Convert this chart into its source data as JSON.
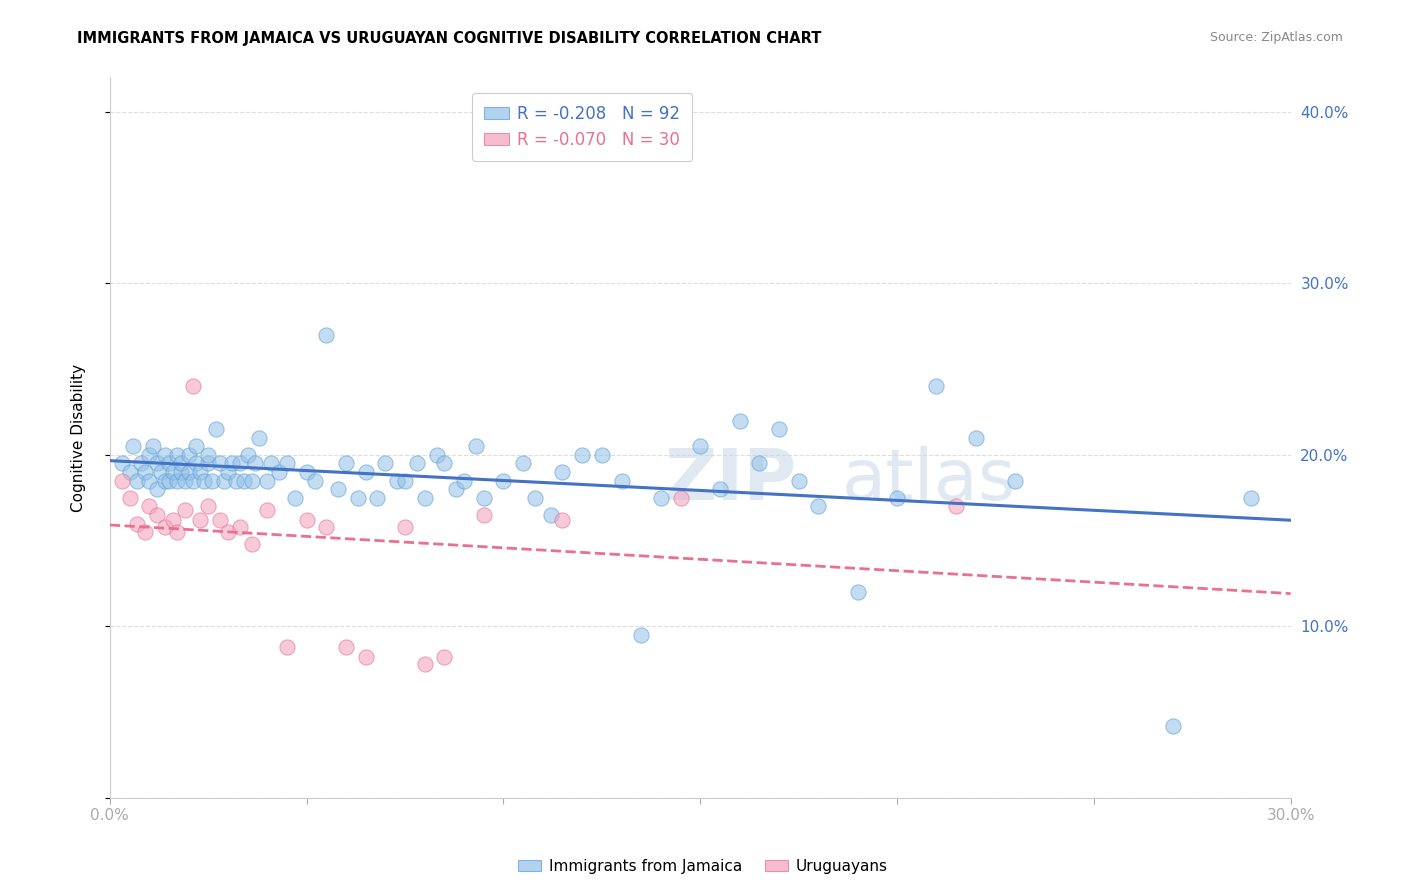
{
  "title": "IMMIGRANTS FROM JAMAICA VS URUGUAYAN COGNITIVE DISABILITY CORRELATION CHART",
  "source": "Source: ZipAtlas.com",
  "ylabel": "Cognitive Disability",
  "xlim": [
    0.0,
    0.3
  ],
  "ylim": [
    0.0,
    0.42
  ],
  "legend1_label": "R = -0.208   N = 92",
  "legend2_label": "R = -0.070   N = 30",
  "watermark_text": "ZIP",
  "watermark_text2": "atlas",
  "blue_color": "#92C0E8",
  "pink_color": "#F4A0B8",
  "line_blue": "#4472C4",
  "line_pink": "#E87090",
  "grid_color": "#DDDDDD",
  "title_fontsize": 10.5,
  "tick_label_color": "#4472C4",
  "blue_scatter_x": [
    0.003,
    0.005,
    0.006,
    0.007,
    0.008,
    0.009,
    0.01,
    0.01,
    0.011,
    0.012,
    0.012,
    0.013,
    0.014,
    0.014,
    0.015,
    0.015,
    0.016,
    0.017,
    0.017,
    0.018,
    0.018,
    0.019,
    0.02,
    0.02,
    0.021,
    0.022,
    0.022,
    0.023,
    0.024,
    0.025,
    0.025,
    0.026,
    0.027,
    0.028,
    0.029,
    0.03,
    0.031,
    0.032,
    0.033,
    0.034,
    0.035,
    0.036,
    0.037,
    0.038,
    0.04,
    0.041,
    0.043,
    0.045,
    0.047,
    0.05,
    0.052,
    0.055,
    0.058,
    0.06,
    0.063,
    0.065,
    0.068,
    0.07,
    0.073,
    0.075,
    0.078,
    0.08,
    0.083,
    0.085,
    0.088,
    0.09,
    0.093,
    0.095,
    0.1,
    0.105,
    0.108,
    0.112,
    0.115,
    0.12,
    0.125,
    0.13,
    0.135,
    0.14,
    0.15,
    0.155,
    0.16,
    0.165,
    0.17,
    0.175,
    0.18,
    0.19,
    0.2,
    0.21,
    0.22,
    0.23,
    0.27,
    0.29
  ],
  "blue_scatter_y": [
    0.195,
    0.19,
    0.205,
    0.185,
    0.195,
    0.19,
    0.2,
    0.185,
    0.205,
    0.195,
    0.18,
    0.19,
    0.185,
    0.2,
    0.195,
    0.185,
    0.19,
    0.185,
    0.2,
    0.19,
    0.195,
    0.185,
    0.19,
    0.2,
    0.185,
    0.195,
    0.205,
    0.19,
    0.185,
    0.195,
    0.2,
    0.185,
    0.215,
    0.195,
    0.185,
    0.19,
    0.195,
    0.185,
    0.195,
    0.185,
    0.2,
    0.185,
    0.195,
    0.21,
    0.185,
    0.195,
    0.19,
    0.195,
    0.175,
    0.19,
    0.185,
    0.27,
    0.18,
    0.195,
    0.175,
    0.19,
    0.175,
    0.195,
    0.185,
    0.185,
    0.195,
    0.175,
    0.2,
    0.195,
    0.18,
    0.185,
    0.205,
    0.175,
    0.185,
    0.195,
    0.175,
    0.165,
    0.19,
    0.2,
    0.2,
    0.185,
    0.095,
    0.175,
    0.205,
    0.18,
    0.22,
    0.195,
    0.215,
    0.185,
    0.17,
    0.12,
    0.175,
    0.24,
    0.21,
    0.185,
    0.042,
    0.175
  ],
  "pink_scatter_x": [
    0.003,
    0.005,
    0.007,
    0.009,
    0.01,
    0.012,
    0.014,
    0.016,
    0.017,
    0.019,
    0.021,
    0.023,
    0.025,
    0.028,
    0.03,
    0.033,
    0.036,
    0.04,
    0.045,
    0.05,
    0.055,
    0.06,
    0.065,
    0.075,
    0.08,
    0.085,
    0.095,
    0.115,
    0.145,
    0.215
  ],
  "pink_scatter_y": [
    0.185,
    0.175,
    0.16,
    0.155,
    0.17,
    0.165,
    0.158,
    0.162,
    0.155,
    0.168,
    0.24,
    0.162,
    0.17,
    0.162,
    0.155,
    0.158,
    0.148,
    0.168,
    0.088,
    0.162,
    0.158,
    0.088,
    0.082,
    0.158,
    0.078,
    0.082,
    0.165,
    0.162,
    0.175,
    0.17
  ]
}
